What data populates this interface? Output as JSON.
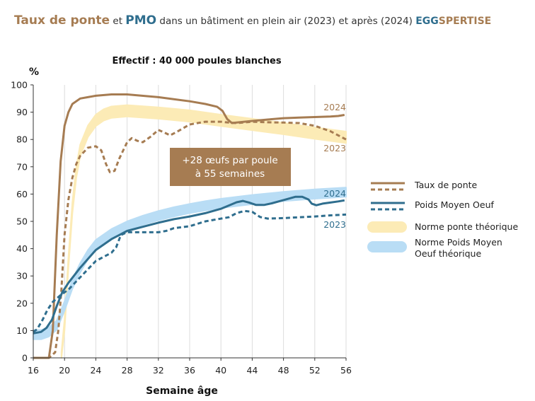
{
  "title": {
    "part1": "Taux de ponte",
    "part2": " et ",
    "part3": "PMO",
    "part4": " dans un bâtiment en plein air (2023) et après (2024) ",
    "brand_a": "EGG",
    "brand_b": "SPERTISE"
  },
  "colors": {
    "ponte": "#A67C52",
    "pmo": "#2F6E8E",
    "norme_ponte": "#FCEBB6",
    "norme_pmo": "#B9DDF5",
    "annotation_bg": "#A67C52"
  },
  "chart_data": {
    "type": "line",
    "subtitle": "Effectif : 40 000 poules blanches",
    "ylabel": "%",
    "xlabel": "Semaine âge",
    "xlim": [
      16,
      56
    ],
    "ylim": [
      0,
      100
    ],
    "xticks": [
      16,
      20,
      24,
      28,
      32,
      36,
      40,
      44,
      48,
      52,
      56
    ],
    "yticks": [
      0,
      10,
      20,
      30,
      40,
      50,
      60,
      70,
      80,
      90,
      100
    ],
    "grid": "vertical",
    "legend_position": "right",
    "annotation": {
      "line1": "+28 œufs par poule",
      "line2": "à 55 semaines"
    },
    "series": [
      {
        "name": "Taux de ponte",
        "label": "2024",
        "style": "solid",
        "points": [
          [
            16,
            0
          ],
          [
            18,
            0
          ],
          [
            18.5,
            10
          ],
          [
            19,
            45
          ],
          [
            19.5,
            72
          ],
          [
            20,
            85
          ],
          [
            20.5,
            90
          ],
          [
            21,
            93
          ],
          [
            22,
            95
          ],
          [
            24,
            96
          ],
          [
            26,
            96.5
          ],
          [
            28,
            96.5
          ],
          [
            32,
            95.5
          ],
          [
            36,
            94
          ],
          [
            38,
            93
          ],
          [
            39.5,
            92
          ],
          [
            40.2,
            90.5
          ],
          [
            40.8,
            87.5
          ],
          [
            41.4,
            86
          ],
          [
            42,
            86.2
          ],
          [
            44,
            86.8
          ],
          [
            46,
            87.3
          ],
          [
            48,
            87.8
          ],
          [
            50,
            88
          ],
          [
            52,
            88.2
          ],
          [
            54,
            88.4
          ],
          [
            55,
            88.6
          ],
          [
            55.8,
            89
          ]
        ]
      },
      {
        "name": "Taux de ponte",
        "label": "2023",
        "style": "dashed",
        "points": [
          [
            16,
            0
          ],
          [
            18,
            0
          ],
          [
            18.8,
            2
          ],
          [
            19.2,
            10
          ],
          [
            19.6,
            25
          ],
          [
            20,
            45
          ],
          [
            20.5,
            58
          ],
          [
            21,
            66
          ],
          [
            21.5,
            71
          ],
          [
            22,
            74
          ],
          [
            23,
            77
          ],
          [
            24,
            77.5
          ],
          [
            24.7,
            76
          ],
          [
            25.3,
            71
          ],
          [
            25.8,
            68
          ],
          [
            26.4,
            68.5
          ],
          [
            27,
            73
          ],
          [
            28,
            79
          ],
          [
            28.6,
            80.5
          ],
          [
            29.3,
            79.5
          ],
          [
            30,
            79
          ],
          [
            31,
            81
          ],
          [
            32,
            83.5
          ],
          [
            32.8,
            82.5
          ],
          [
            33.5,
            81.5
          ],
          [
            34.5,
            83
          ],
          [
            36,
            85.5
          ],
          [
            38,
            86.5
          ],
          [
            40,
            86.5
          ],
          [
            41,
            86.2
          ],
          [
            42,
            86
          ],
          [
            44,
            86.5
          ],
          [
            46,
            86.3
          ],
          [
            48,
            86.2
          ],
          [
            50,
            86
          ],
          [
            52,
            85
          ],
          [
            54,
            83
          ],
          [
            56,
            80
          ]
        ]
      },
      {
        "name": "Poids Moyen Oeuf",
        "label": "2024",
        "style": "solid",
        "points": [
          [
            16,
            9
          ],
          [
            17,
            9.5
          ],
          [
            17.7,
            11
          ],
          [
            18.4,
            14
          ],
          [
            19,
            19
          ],
          [
            19.7,
            24
          ],
          [
            20.5,
            27.5
          ],
          [
            22,
            33
          ],
          [
            24,
            39.5
          ],
          [
            26,
            43.5
          ],
          [
            27,
            45
          ],
          [
            28,
            46.5
          ],
          [
            30,
            48
          ],
          [
            32,
            49.5
          ],
          [
            34,
            50.8
          ],
          [
            36,
            51.8
          ],
          [
            38,
            53
          ],
          [
            40,
            54.6
          ],
          [
            42,
            57
          ],
          [
            42.8,
            57.5
          ],
          [
            43.6,
            56.9
          ],
          [
            44.5,
            56
          ],
          [
            45.5,
            56
          ],
          [
            46.5,
            56.6
          ],
          [
            48,
            57.8
          ],
          [
            49.5,
            59
          ],
          [
            50.4,
            59
          ],
          [
            51.2,
            58
          ],
          [
            51.6,
            56.5
          ],
          [
            52.2,
            55.9
          ],
          [
            53,
            56.5
          ],
          [
            54,
            56.9
          ],
          [
            55,
            57.3
          ],
          [
            55.8,
            57.7
          ]
        ]
      },
      {
        "name": "Poids Moyen Oeuf",
        "label": "2023",
        "style": "dashed",
        "points": [
          [
            16,
            9.5
          ],
          [
            16.5,
            10.5
          ],
          [
            17.2,
            14
          ],
          [
            17.8,
            17.5
          ],
          [
            18.5,
            20.5
          ],
          [
            19.5,
            23
          ],
          [
            20.5,
            25
          ],
          [
            22,
            29.5
          ],
          [
            24,
            35.5
          ],
          [
            26,
            38.5
          ],
          [
            26.6,
            40.5
          ],
          [
            27.2,
            45
          ],
          [
            28,
            46
          ],
          [
            30,
            46
          ],
          [
            32,
            46
          ],
          [
            33,
            46.5
          ],
          [
            34,
            47.5
          ],
          [
            36,
            48.2
          ],
          [
            38,
            50
          ],
          [
            40,
            51
          ],
          [
            41,
            51.5
          ],
          [
            42,
            53
          ],
          [
            43,
            53.8
          ],
          [
            44,
            53.5
          ],
          [
            45,
            51.6
          ],
          [
            46,
            51
          ],
          [
            48,
            51.2
          ],
          [
            50,
            51.5
          ],
          [
            52,
            51.8
          ],
          [
            54,
            52.2
          ],
          [
            56,
            52.5
          ]
        ]
      }
    ],
    "norms": [
      {
        "name": "Norme ponte théorique",
        "center": [
          [
            19.6,
            0
          ],
          [
            20,
            12
          ],
          [
            20.5,
            35
          ],
          [
            21,
            55
          ],
          [
            21.5,
            68
          ],
          [
            22,
            76
          ],
          [
            23,
            83
          ],
          [
            24,
            87
          ],
          [
            25,
            89
          ],
          [
            26,
            90
          ],
          [
            28,
            90.5
          ],
          [
            32,
            89.7
          ],
          [
            36,
            88.6
          ],
          [
            40,
            87
          ],
          [
            44,
            85.5
          ],
          [
            48,
            84
          ],
          [
            52,
            82.3
          ],
          [
            56,
            80.8
          ]
        ],
        "halfwidth": 2.1
      },
      {
        "name": "Norme Poids Moyen Oeuf théorique",
        "center": [
          [
            16,
            8.5
          ],
          [
            17,
            8.5
          ],
          [
            18,
            9.5
          ],
          [
            19,
            12
          ],
          [
            20,
            19
          ],
          [
            21,
            27
          ],
          [
            22,
            33
          ],
          [
            23,
            37.8
          ],
          [
            24,
            41.5
          ],
          [
            26,
            45.5
          ],
          [
            28,
            48.3
          ],
          [
            30,
            50.4
          ],
          [
            32,
            52.1
          ],
          [
            34,
            53.5
          ],
          [
            36,
            54.7
          ],
          [
            38,
            55.7
          ],
          [
            40,
            56.6
          ],
          [
            44,
            58
          ],
          [
            48,
            59.1
          ],
          [
            52,
            60
          ],
          [
            56,
            60.7
          ]
        ],
        "halfwidth": 1.7
      }
    ],
    "legend": [
      {
        "label": "Taux de ponte"
      },
      {
        "label": "Poids Moyen Oeuf"
      },
      {
        "label": "Norme ponte théorique"
      },
      {
        "label": "Norme Poids Moyen",
        "label2": "Oeuf théorique"
      }
    ]
  }
}
